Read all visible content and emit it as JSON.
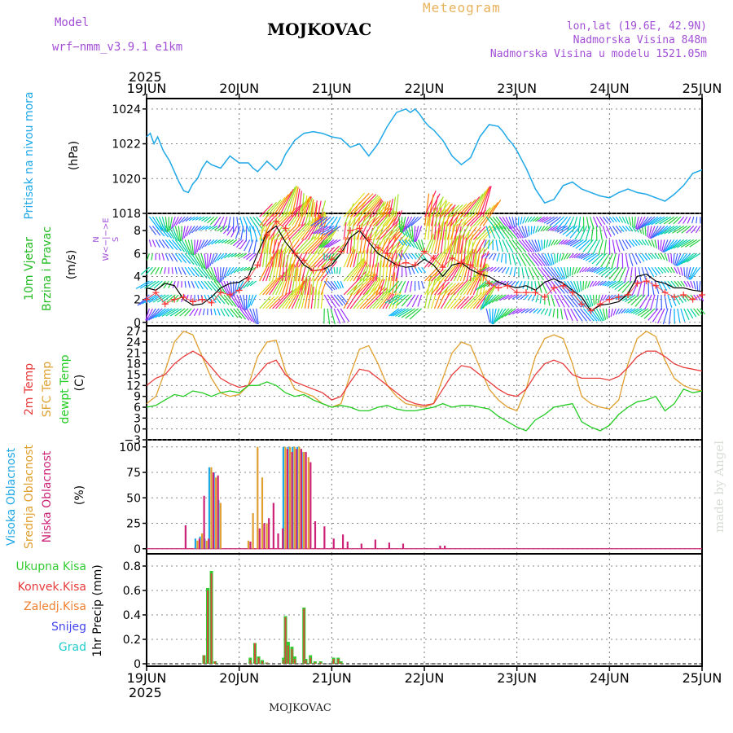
{
  "header": {
    "model_label": "Model",
    "model_name": "wrf−nmm_v3.9.1  e1km",
    "title": "MOJKOVAC",
    "meteogram_label": "Meteogram",
    "lonlat": "lon,lat (19.6E, 42.9N)",
    "altitude": "Nadmorska Visina 848m",
    "model_altitude": "Nadmorska Visina u modelu 1521.05m"
  },
  "footer": {
    "station": "MOJKOVAC",
    "made_by": "made by Angel"
  },
  "time_axis": {
    "year": "2025",
    "day_labels": [
      "19JUN",
      "20JUN",
      "21JUN",
      "22JUN",
      "23JUN",
      "24JUN",
      "25JUN"
    ]
  },
  "colors": {
    "pressure": "#1fa8e8",
    "wind_speed": "#000000",
    "wind_gust": "#ff3030",
    "t2m": "#e83a3a",
    "tsfc": "#e0a030",
    "dewpoint": "#22cc22",
    "cloud_high": "#1fa8e8",
    "cloud_mid": "#e0a030",
    "cloud_low": "#cc2277",
    "precip_total": "#33cc33",
    "precip_conv": "#e83a3a",
    "precip_frz": "#f08030",
    "precip_snow": "#4444ee",
    "precip_graupel": "#22cccc"
  },
  "chart_data": [
    {
      "type": "line",
      "panel": "pressure",
      "ylabel_rot": "Pritisak na nivou mora",
      "unit": "(hPa)",
      "ylim": [
        1018,
        1024.6
      ],
      "yticks": [
        "1018",
        "1020",
        "1022",
        "1024"
      ],
      "x_days": [
        0,
        0.04,
        0.08,
        0.12,
        0.18,
        0.25,
        0.3,
        0.35,
        0.4,
        0.45,
        0.5,
        0.55,
        0.6,
        0.65,
        0.7,
        0.8,
        0.9,
        1.0,
        1.1,
        1.15,
        1.2,
        1.3,
        1.4,
        1.45,
        1.5,
        1.6,
        1.7,
        1.8,
        1.9,
        2.0,
        2.1,
        2.2,
        2.3,
        2.4,
        2.5,
        2.6,
        2.7,
        2.8,
        2.85,
        2.9,
        2.95,
        3.0,
        3.05,
        3.1,
        3.2,
        3.3,
        3.4,
        3.5,
        3.6,
        3.7,
        3.8,
        3.85,
        3.9,
        3.95,
        4.0,
        4.1,
        4.2,
        4.3,
        4.4,
        4.5,
        4.6,
        4.7,
        4.8,
        4.9,
        5.0,
        5.1,
        5.2,
        5.3,
        5.4,
        5.5,
        5.6,
        5.7,
        5.8,
        5.9,
        6.0
      ],
      "series": [
        {
          "values": [
            1022.4,
            1022.6,
            1022.0,
            1022.4,
            1021.6,
            1021.0,
            1020.4,
            1019.8,
            1019.3,
            1019.2,
            1019.7,
            1020.0,
            1020.6,
            1021.0,
            1020.8,
            1020.6,
            1021.3,
            1020.9,
            1020.9,
            1020.6,
            1020.4,
            1021.0,
            1020.5,
            1020.8,
            1021.4,
            1022.2,
            1022.6,
            1022.7,
            1022.6,
            1022.4,
            1022.3,
            1021.8,
            1022.0,
            1021.3,
            1022.0,
            1023.0,
            1023.8,
            1024.0,
            1023.8,
            1024.0,
            1023.7,
            1023.3,
            1023.0,
            1022.8,
            1022.2,
            1021.3,
            1020.8,
            1021.2,
            1022.4,
            1023.1,
            1023.0,
            1022.7,
            1022.3,
            1022.0,
            1021.6,
            1020.6,
            1019.4,
            1018.6,
            1018.8,
            1019.6,
            1019.8,
            1019.4,
            1019.2,
            1019.0,
            1018.9,
            1019.2,
            1019.4,
            1019.2,
            1019.1,
            1018.9,
            1018.7,
            1019.1,
            1019.6,
            1020.3,
            1020.5
          ]
        }
      ]
    },
    {
      "type": "line",
      "panel": "wind",
      "ylabel_rot": [
        "10m Vjetar",
        "Brzina i Pravac"
      ],
      "unit": "(m/s)",
      "compass": "N / W<−|−>E / S",
      "ylim": [
        -0.3,
        9.5
      ],
      "yticks": [
        "0",
        "2",
        "4",
        "6",
        "8"
      ],
      "x_days": [
        0,
        0.1,
        0.2,
        0.3,
        0.4,
        0.5,
        0.6,
        0.7,
        0.8,
        0.9,
        1.0,
        1.1,
        1.2,
        1.3,
        1.4,
        1.5,
        1.6,
        1.7,
        1.8,
        1.9,
        2.0,
        2.1,
        2.2,
        2.3,
        2.4,
        2.5,
        2.6,
        2.7,
        2.8,
        2.9,
        3.0,
        3.1,
        3.2,
        3.3,
        3.4,
        3.5,
        3.6,
        3.7,
        3.8,
        3.9,
        4.0,
        4.1,
        4.2,
        4.3,
        4.4,
        4.5,
        4.6,
        4.7,
        4.8,
        4.9,
        5.0,
        5.1,
        5.2,
        5.3,
        5.4,
        5.5,
        5.6,
        5.7,
        5.8,
        5.9,
        6.0
      ],
      "series": [
        {
          "name": "speed",
          "values": [
            3.0,
            2.8,
            3.4,
            3.2,
            2.0,
            1.5,
            1.6,
            2.2,
            3.0,
            3.4,
            3.5,
            4.0,
            6.0,
            7.8,
            8.4,
            7.0,
            6.0,
            5.0,
            4.5,
            4.6,
            5.0,
            6.0,
            7.4,
            8.0,
            7.0,
            6.0,
            5.5,
            5.0,
            4.8,
            4.9,
            5.5,
            5.0,
            4.0,
            5.0,
            5.2,
            4.6,
            4.2,
            4.0,
            3.5,
            3.2,
            3.0,
            3.2,
            2.8,
            3.5,
            3.8,
            3.4,
            2.8,
            2.2,
            1.0,
            1.5,
            1.6,
            1.8,
            2.5,
            4.0,
            4.2,
            3.6,
            3.4,
            3.0,
            3.0,
            2.8,
            2.7
          ]
        },
        {
          "name": "gust",
          "values": [
            2.0,
            2.6,
            1.6,
            2.0,
            2.2,
            1.8,
            2.0,
            1.7,
            2.6,
            2.4,
            2.8,
            3.8,
            5.0,
            7.6,
            8.8,
            8.2,
            6.0,
            5.4,
            4.5,
            4.6,
            5.5,
            6.2,
            8.0,
            8.2,
            7.2,
            6.5,
            6.0,
            5.0,
            5.2,
            5.0,
            6.2,
            5.6,
            4.8,
            5.6,
            5.2,
            5.0,
            4.4,
            3.4,
            3.0,
            3.2,
            2.6,
            2.6,
            2.6,
            2.2,
            3.0,
            3.2,
            2.6,
            1.6,
            1.0,
            1.6,
            2.0,
            2.2,
            2.4,
            3.4,
            3.6,
            3.2,
            2.6,
            2.2,
            2.4,
            2.0,
            2.4
          ]
        }
      ]
    },
    {
      "type": "line",
      "panel": "temperature",
      "ylabel_rot": [
        "2m Temp",
        "SFC Temp",
        "dewpt Temp"
      ],
      "unit": "(C)",
      "ylim": [
        -3,
        28.5
      ],
      "yticks": [
        "−3",
        "0",
        "3",
        "6",
        "9",
        "12",
        "15",
        "18",
        "21",
        "24",
        "27"
      ],
      "x_days": [
        0,
        0.1,
        0.2,
        0.3,
        0.4,
        0.5,
        0.6,
        0.7,
        0.8,
        0.9,
        1.0,
        1.1,
        1.2,
        1.3,
        1.4,
        1.5,
        1.6,
        1.7,
        1.8,
        1.9,
        2.0,
        2.1,
        2.2,
        2.3,
        2.4,
        2.5,
        2.6,
        2.7,
        2.8,
        2.9,
        3.0,
        3.1,
        3.2,
        3.3,
        3.4,
        3.5,
        3.6,
        3.7,
        3.8,
        3.9,
        4.0,
        4.1,
        4.2,
        4.3,
        4.4,
        4.5,
        4.6,
        4.7,
        4.8,
        4.9,
        5.0,
        5.1,
        5.2,
        5.3,
        5.4,
        5.5,
        5.6,
        5.7,
        5.8,
        5.9,
        6.0
      ],
      "series": [
        {
          "name": "t2m",
          "values": [
            12.0,
            14.0,
            15.0,
            18.0,
            20.0,
            21.5,
            20.0,
            17.0,
            14.0,
            12.5,
            11.5,
            12.0,
            15.0,
            18.0,
            19.0,
            15.0,
            13.0,
            12.0,
            11.0,
            10.0,
            8.0,
            9.0,
            13.0,
            16.5,
            16.0,
            14.0,
            12.0,
            10.0,
            8.0,
            7.0,
            6.5,
            7.0,
            11.0,
            15.0,
            17.5,
            17.0,
            15.0,
            13.0,
            11.0,
            9.5,
            9.0,
            11.0,
            15.0,
            18.0,
            19.0,
            18.0,
            15.0,
            14.0,
            14.0,
            14.0,
            13.5,
            14.5,
            17.0,
            20.0,
            21.5,
            21.5,
            20.0,
            18.0,
            17.0,
            16.5,
            16.0
          ]
        },
        {
          "name": "tsfc",
          "values": [
            7.0,
            9.0,
            16.0,
            24.0,
            27.0,
            26.0,
            20.0,
            14.0,
            10.0,
            9.0,
            9.5,
            12.0,
            20.0,
            24.0,
            24.5,
            16.0,
            11.0,
            10.0,
            9.0,
            7.0,
            6.0,
            7.0,
            15.0,
            22.0,
            23.0,
            18.0,
            12.0,
            9.0,
            7.0,
            6.5,
            6.0,
            7.0,
            14.0,
            21.0,
            24.0,
            23.0,
            17.0,
            11.0,
            8.0,
            6.0,
            5.0,
            11.0,
            20.0,
            25.0,
            26.0,
            25.0,
            18.0,
            9.0,
            7.0,
            6.0,
            5.5,
            8.0,
            18.0,
            25.0,
            27.0,
            25.5,
            19.0,
            14.0,
            12.0,
            11.0,
            10.5
          ]
        },
        {
          "name": "dewpt",
          "values": [
            6.0,
            6.5,
            8.0,
            9.5,
            9.0,
            10.5,
            10.0,
            9.0,
            10.0,
            10.5,
            10.0,
            12.0,
            12.0,
            13.0,
            12.0,
            10.0,
            9.0,
            9.5,
            8.0,
            7.0,
            6.0,
            6.5,
            6.0,
            5.0,
            5.0,
            6.0,
            6.5,
            5.5,
            5.0,
            5.0,
            5.5,
            6.0,
            7.0,
            6.0,
            6.5,
            6.5,
            6.0,
            5.5,
            3.5,
            2.0,
            0.5,
            -0.5,
            2.5,
            4.0,
            6.0,
            6.5,
            7.0,
            2.0,
            0.5,
            -0.5,
            1.0,
            4.0,
            6.0,
            7.5,
            8.0,
            9.0,
            5.0,
            7.0,
            11.0,
            10.0,
            10.5
          ]
        }
      ]
    },
    {
      "type": "bar",
      "panel": "cloud",
      "ylabel_rot": [
        "Visoka Oblacnost",
        "Srednja Oblacnost",
        "Niska Oblacnost"
      ],
      "unit": "(%)",
      "ylim": [
        -5,
        107
      ],
      "yticks": [
        "0",
        "25",
        "50",
        "75",
        "100"
      ],
      "x_days": [
        0.4,
        0.55,
        0.6,
        0.65,
        0.7,
        0.75,
        0.8,
        1.1,
        1.15,
        1.2,
        1.25,
        1.3,
        1.35,
        1.4,
        1.45,
        1.5,
        1.55,
        1.6,
        1.65,
        1.7,
        1.75,
        1.8,
        1.9,
        2.0,
        2.1,
        2.15,
        2.3,
        2.45,
        2.6,
        2.75,
        3.15,
        3.2
      ],
      "series": [
        {
          "name": "high",
          "values": [
            0,
            10,
            12,
            10,
            80,
            75,
            48,
            0,
            0,
            0,
            0,
            0,
            0,
            0,
            0,
            100,
            100,
            100,
            100,
            95,
            0,
            0,
            0,
            0,
            0,
            0,
            0,
            0,
            0,
            0,
            0,
            0
          ]
        },
        {
          "name": "mid",
          "values": [
            0,
            8,
            15,
            8,
            80,
            70,
            45,
            8,
            35,
            100,
            70,
            25,
            0,
            0,
            0,
            100,
            100,
            100,
            100,
            95,
            90,
            0,
            0,
            0,
            0,
            0,
            0,
            0,
            0,
            0,
            0,
            0
          ]
        },
        {
          "name": "low",
          "values": [
            23,
            10,
            52,
            10,
            75,
            72,
            0,
            7,
            0,
            20,
            25,
            30,
            45,
            15,
            20,
            98,
            95,
            98,
            98,
            95,
            85,
            27,
            22,
            10,
            14,
            7,
            5,
            9,
            6,
            5,
            3,
            3
          ]
        }
      ]
    },
    {
      "type": "bar",
      "panel": "precip",
      "legend": [
        "Ukupna Kisa",
        "Konvek.Kisa",
        "Zaledj.Kisa",
        "Snijeg",
        "Grad"
      ],
      "ylabel": "1hr Precip (mm)",
      "ylim": [
        -0.02,
        0.9
      ],
      "yticks": [
        "0",
        "0.2",
        "0.4",
        "0.6",
        "0.8"
      ],
      "x_days": [
        0.62,
        0.66,
        0.7,
        0.74,
        1.12,
        1.17,
        1.21,
        1.25,
        1.3,
        1.48,
        1.5,
        1.53,
        1.57,
        1.6,
        1.7,
        1.72,
        1.77,
        1.82,
        1.88,
        2.02,
        2.07,
        2.1
      ],
      "series": [
        {
          "name": "Ukupna Kisa",
          "values": [
            0.07,
            0.62,
            0.76,
            0.02,
            0.05,
            0.17,
            0.06,
            0.03,
            0.01,
            0.05,
            0.39,
            0.18,
            0.14,
            0.06,
            0.46,
            0.04,
            0.07,
            0.02,
            0.02,
            0.05,
            0.05,
            0.02
          ]
        },
        {
          "name": "Konvek.Kisa",
          "values": [
            0.07,
            0.6,
            0.74,
            0.02,
            0.03,
            0.17,
            0.05,
            0.02,
            0.01,
            0.03,
            0.38,
            0.15,
            0.12,
            0.04,
            0.45,
            0.03,
            0.05,
            0.01,
            0.01,
            0.04,
            0.04,
            0.01
          ]
        }
      ]
    }
  ]
}
